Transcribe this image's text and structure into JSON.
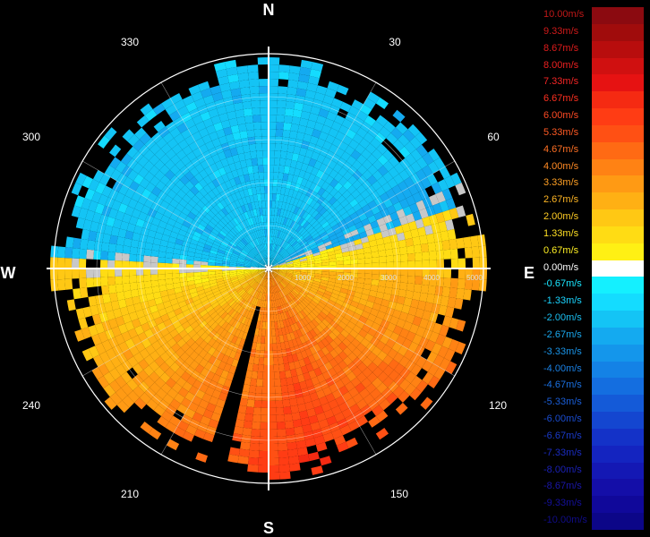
{
  "compass": {
    "north": "N",
    "south": "S",
    "east": "E",
    "west": "W"
  },
  "azimuth_labels": [
    "30",
    "60",
    "120",
    "150",
    "210",
    "240",
    "300",
    "330"
  ],
  "range_labels": [
    "1000",
    "2000",
    "3000",
    "4000",
    "5000"
  ],
  "legend": [
    {
      "label": "10.00m/s",
      "color": "#8b0a10",
      "text_color": "#c01818"
    },
    {
      "label": "9.33m/s",
      "color": "#a00c0c",
      "text_color": "#d01a1a"
    },
    {
      "label": "8.67m/s",
      "color": "#b80d0d",
      "text_color": "#e01c1c"
    },
    {
      "label": "8.00m/s",
      "color": "#d01010",
      "text_color": "#ee2020"
    },
    {
      "label": "7.33m/s",
      "color": "#e61212",
      "text_color": "#f52525"
    },
    {
      "label": "6.67m/s",
      "color": "#f52a12",
      "text_color": "#ff3020"
    },
    {
      "label": "6.00m/s",
      "color": "#ff3c14",
      "text_color": "#ff4a24"
    },
    {
      "label": "5.33m/s",
      "color": "#ff5014",
      "text_color": "#ff5a24"
    },
    {
      "label": "4.67m/s",
      "color": "#ff6a14",
      "text_color": "#ff7024"
    },
    {
      "label": "4.00m/s",
      "color": "#ff8214",
      "text_color": "#ff8a24"
    },
    {
      "label": "3.33m/s",
      "color": "#ff9a14",
      "text_color": "#ffa024"
    },
    {
      "label": "2.67m/s",
      "color": "#ffb014",
      "text_color": "#ffb624"
    },
    {
      "label": "2.00m/s",
      "color": "#ffc814",
      "text_color": "#ffcc24"
    },
    {
      "label": "1.33m/s",
      "color": "#ffdc14",
      "text_color": "#ffe024"
    },
    {
      "label": "0.67m/s",
      "color": "#fff014",
      "text_color": "#fff024"
    },
    {
      "label": "0.00m/s",
      "color": "#ffffff",
      "text_color": "#ffffff"
    },
    {
      "label": "-0.67m/s",
      "color": "#14f0ff",
      "text_color": "#1ae6ff"
    },
    {
      "label": "-1.33m/s",
      "color": "#14dcff",
      "text_color": "#1ad4ff"
    },
    {
      "label": "-2.00m/s",
      "color": "#14c4f5",
      "text_color": "#1abef0"
    },
    {
      "label": "-2.67m/s",
      "color": "#14aaf0",
      "text_color": "#1aa8ee"
    },
    {
      "label": "-3.33m/s",
      "color": "#1496eb",
      "text_color": "#1a94e8"
    },
    {
      "label": "-4.00m/s",
      "color": "#1482e6",
      "text_color": "#1a80e4"
    },
    {
      "label": "-4.67m/s",
      "color": "#146ee0",
      "text_color": "#1a70e0"
    },
    {
      "label": "-5.33m/s",
      "color": "#145ad8",
      "text_color": "#1a5ed8"
    },
    {
      "label": "-6.00m/s",
      "color": "#1446d0",
      "text_color": "#1a4cd0"
    },
    {
      "label": "-6.67m/s",
      "color": "#1432c8",
      "text_color": "#1a3ac8"
    },
    {
      "label": "-7.33m/s",
      "color": "#1424c0",
      "text_color": "#1a2cc0"
    },
    {
      "label": "-8.00m/s",
      "color": "#1418b4",
      "text_color": "#1a20b4"
    },
    {
      "label": "-8.67m/s",
      "color": "#140ea8",
      "text_color": "#1a16a8"
    },
    {
      "label": "-9.33m/s",
      "color": "#10089a",
      "text_color": "#14109a"
    },
    {
      "label": "-10.00m/s",
      "color": "#0c0688",
      "text_color": "#100c88"
    }
  ],
  "colors": {
    "background": "#000000",
    "grid": "#ffffff",
    "no_data": "#000000",
    "clutter": "#c8c8c8"
  }
}
